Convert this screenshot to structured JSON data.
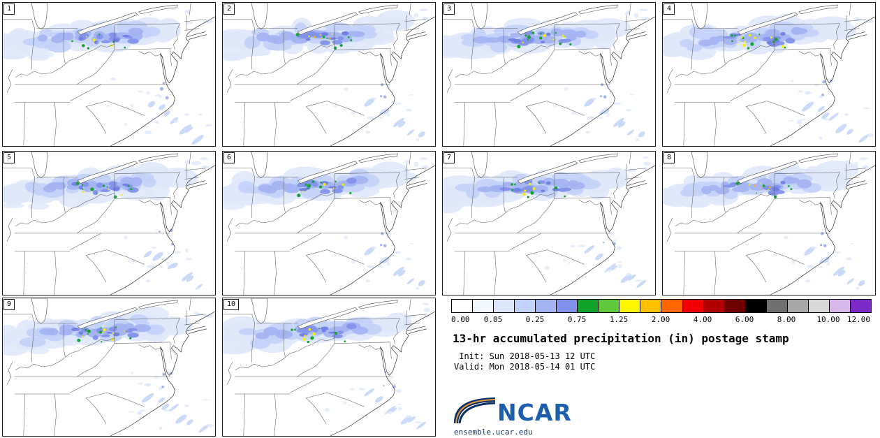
{
  "panels": [
    {
      "label": "1"
    },
    {
      "label": "2"
    },
    {
      "label": "3"
    },
    {
      "label": "4"
    },
    {
      "label": "5"
    },
    {
      "label": "6"
    },
    {
      "label": "7"
    },
    {
      "label": "8"
    },
    {
      "label": "9"
    },
    {
      "label": "10"
    }
  ],
  "legend": {
    "title": "13-hr accumulated precipitation (in) postage stamp",
    "init_line": " Init: Sun 2018-05-13 12 UTC",
    "valid_line": "Valid: Mon 2018-05-14 01 UTC",
    "logo_text": "NCAR",
    "site_url": "ensemble.ucar.edu",
    "ticks": [
      "0.00",
      "0.05",
      "0.25",
      "0.75",
      "1.25",
      "2.00",
      "4.00",
      "6.00",
      "8.00",
      "10.00",
      "12.00"
    ],
    "colors": [
      "#ffffff",
      "#f3f7fe",
      "#dce6fb",
      "#c3d2f8",
      "#a3b4f2",
      "#8292ea",
      "#12a32c",
      "#5fc93c",
      "#fbf500",
      "#ffc000",
      "#ff6600",
      "#f00000",
      "#b00000",
      "#700000",
      "#000000",
      "#707070",
      "#a8a8a8",
      "#d8d8d8",
      "#d8b9ea",
      "#7d2bc8"
    ]
  },
  "map_palette": {
    "p1": "#dfe8fb",
    "p2": "#c3d3f8",
    "p3": "#a3b4f2",
    "p4": "#8292ea",
    "p5": "#6f7fe3",
    "green": "#14a32c",
    "yellow": "#f5ef00",
    "orange": "#ffb300",
    "boundary": "#5a5a5a",
    "coast": "#2f2f2f",
    "lake_fill": "#ffffff",
    "ncar_blue": "#1d5fad",
    "ncar_navy": "#0b2e63",
    "ncar_orange": "#e89b3c"
  },
  "chart_data": {
    "type": "heatmap",
    "title": "13-hr accumulated precipitation (in) postage stamp",
    "subtitle_init": "Init: Sun 2018-05-13 12 UTC",
    "subtitle_valid": "Valid: Mon 2018-05-14 01 UTC",
    "units": "in",
    "ensemble_members": [
      1,
      2,
      3,
      4,
      5,
      6,
      7,
      8,
      9,
      10
    ],
    "colorbar_levels": [
      0.0,
      0.05,
      0.25,
      0.75,
      1.25,
      2.0,
      4.0,
      6.0,
      8.0,
      10.0,
      12.0
    ],
    "legend_position": "bottom-right",
    "region": "Eastern United States",
    "notes": "Band of 0.05-2.00 in accumulated precipitation across OH/PA/NY with embedded 0.75-2.00 in maxima; scattered light amounts over the Carolinas and offshore southeast"
  }
}
